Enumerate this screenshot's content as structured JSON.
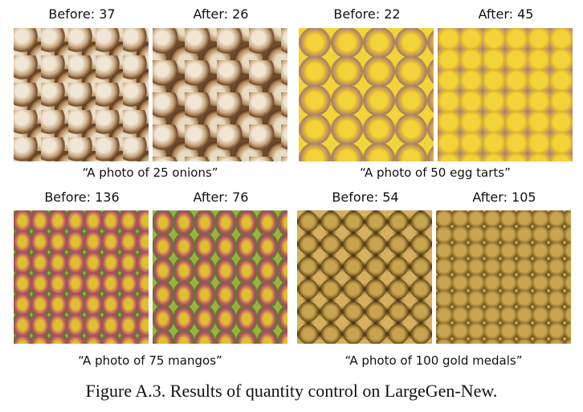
{
  "panels": [
    {
      "before": "Before: 37",
      "after": "After: 26",
      "caption": "“A photo of 25 onions”",
      "subject": "onions"
    },
    {
      "before": "Before: 22",
      "after": "After: 45",
      "caption": "“A photo of 50 egg tarts”",
      "subject": "egg tarts"
    },
    {
      "before": "Before: 136",
      "after": "After: 76",
      "caption": "“A photo of 75 mangos”",
      "subject": "mangos"
    },
    {
      "before": "Before: 54",
      "after": "After: 105",
      "caption": "“A photo of 100 gold medals”",
      "subject": "gold medals"
    }
  ],
  "figure_caption": "Figure A.3. Results of quantity control on LargeGen-New."
}
